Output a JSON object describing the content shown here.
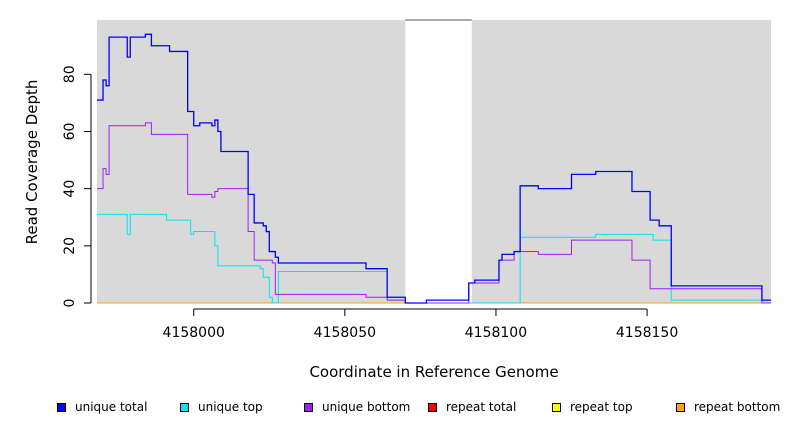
{
  "chart_data": {
    "type": "line",
    "title": "",
    "xlabel": "Coordinate in Reference Genome",
    "ylabel": "Read Coverage Depth",
    "xlim": [
      4157968,
      4158191
    ],
    "ylim": [
      0,
      99
    ],
    "x_ticks": [
      4158000,
      4158050,
      4158100,
      4158150
    ],
    "x_tick_labels": [
      "4158000",
      "4158050",
      "4158100",
      "4158150"
    ],
    "y_ticks": [
      0,
      20,
      40,
      60,
      80
    ],
    "y_tick_labels": [
      "0",
      "20",
      "40",
      "60",
      "80"
    ],
    "grid": false,
    "legend_position": "bottom",
    "background": "#d9d9d9",
    "gap_regions": [
      [
        4158070,
        4158092
      ]
    ],
    "series": [
      {
        "name": "unique total",
        "color": "#0000ff",
        "points": [
          [
            4157968,
            71
          ],
          [
            4157970,
            78
          ],
          [
            4157971,
            76
          ],
          [
            4157972,
            93
          ],
          [
            4157978,
            86
          ],
          [
            4157979,
            93
          ],
          [
            4157984,
            94
          ],
          [
            4157986,
            90
          ],
          [
            4157992,
            88
          ],
          [
            4157998,
            67
          ],
          [
            4158000,
            62
          ],
          [
            4158002,
            63
          ],
          [
            4158006,
            62
          ],
          [
            4158007,
            64
          ],
          [
            4158008,
            60
          ],
          [
            4158009,
            53
          ],
          [
            4158018,
            38
          ],
          [
            4158020,
            28
          ],
          [
            4158023,
            27
          ],
          [
            4158024,
            25
          ],
          [
            4158025,
            18
          ],
          [
            4158027,
            16
          ],
          [
            4158028,
            14
          ],
          [
            4158057,
            12
          ],
          [
            4158064,
            2
          ],
          [
            4158070,
            0
          ],
          [
            4158077,
            1
          ],
          [
            4158091,
            7
          ],
          [
            4158093,
            8
          ],
          [
            4158101,
            15
          ],
          [
            4158102,
            17
          ],
          [
            4158106,
            18
          ],
          [
            4158108,
            41
          ],
          [
            4158114,
            40
          ],
          [
            4158125,
            45
          ],
          [
            4158133,
            46
          ],
          [
            4158145,
            39
          ],
          [
            4158151,
            29
          ],
          [
            4158154,
            27
          ],
          [
            4158158,
            6
          ],
          [
            4158188,
            1
          ],
          [
            4158191,
            1
          ]
        ]
      },
      {
        "name": "unique top",
        "color": "#00e5ee",
        "points": [
          [
            4157968,
            31
          ],
          [
            4157978,
            24
          ],
          [
            4157979,
            31
          ],
          [
            4157991,
            29
          ],
          [
            4157999,
            24
          ],
          [
            4158000,
            25
          ],
          [
            4158003,
            25
          ],
          [
            4158007,
            20
          ],
          [
            4158008,
            13
          ],
          [
            4158022,
            12
          ],
          [
            4158023,
            9
          ],
          [
            4158025,
            2
          ],
          [
            4158026,
            0
          ],
          [
            4158028,
            11
          ],
          [
            4158064,
            1
          ],
          [
            4158070,
            0
          ],
          [
            4158108,
            23
          ],
          [
            4158133,
            24
          ],
          [
            4158152,
            22
          ],
          [
            4158158,
            1
          ],
          [
            4158188,
            0
          ],
          [
            4158191,
            0
          ]
        ]
      },
      {
        "name": "unique bottom",
        "color": "#a020f0",
        "points": [
          [
            4157968,
            40
          ],
          [
            4157970,
            47
          ],
          [
            4157971,
            45
          ],
          [
            4157972,
            62
          ],
          [
            4157984,
            63
          ],
          [
            4157986,
            59
          ],
          [
            4157998,
            38
          ],
          [
            4158006,
            37
          ],
          [
            4158007,
            39
          ],
          [
            4158008,
            40
          ],
          [
            4158018,
            25
          ],
          [
            4158020,
            15
          ],
          [
            4158026,
            14
          ],
          [
            4158027,
            3
          ],
          [
            4158057,
            2
          ],
          [
            4158064,
            1
          ],
          [
            4158070,
            0
          ],
          [
            4158091,
            7
          ],
          [
            4158101,
            15
          ],
          [
            4158106,
            18
          ],
          [
            4158114,
            17
          ],
          [
            4158125,
            22
          ],
          [
            4158145,
            15
          ],
          [
            4158151,
            5
          ],
          [
            4158188,
            0
          ],
          [
            4158191,
            0
          ]
        ]
      },
      {
        "name": "repeat total",
        "color": "#ff0000",
        "points": [
          [
            4157968,
            0
          ],
          [
            4158191,
            0
          ]
        ]
      },
      {
        "name": "repeat top",
        "color": "#ffff00",
        "points": [
          [
            4157968,
            0
          ],
          [
            4158191,
            0
          ]
        ]
      },
      {
        "name": "repeat bottom",
        "color": "#ffa500",
        "points": [
          [
            4157968,
            0
          ],
          [
            4158191,
            0
          ]
        ]
      }
    ]
  }
}
